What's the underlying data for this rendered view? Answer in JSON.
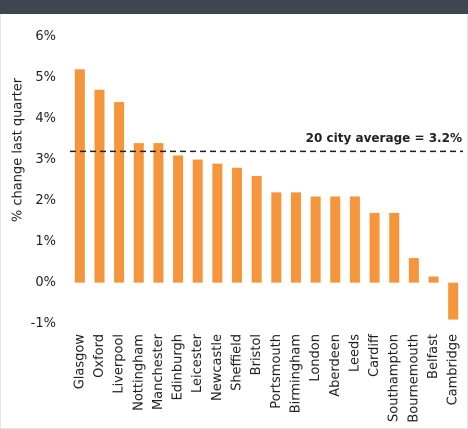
{
  "chart_data": {
    "type": "bar",
    "y_label": "% change last quarter",
    "categories": [
      "Glasgow",
      "Oxford",
      "Liverpool",
      "Nottingham",
      "Manchester",
      "Edinburgh",
      "Leicester",
      "Newcastle",
      "Sheffield",
      "Bristol",
      "Portsmouth",
      "Birmingham",
      "London",
      "Aberdeen",
      "Leeds",
      "Cardiff",
      "Southampton",
      "Bournemouth",
      "Belfast",
      "Cambridge"
    ],
    "values": [
      5.2,
      4.7,
      4.4,
      3.4,
      3.4,
      3.1,
      3.0,
      2.9,
      2.8,
      2.6,
      2.2,
      2.2,
      2.1,
      2.1,
      2.1,
      1.7,
      1.7,
      0.6,
      0.15,
      -0.9
    ],
    "color": "#f5963c",
    "ylim": [
      -1.3,
      6.4
    ],
    "yticks": [
      {
        "value": -1,
        "label": "-1%"
      },
      {
        "value": 0,
        "label": "0%"
      },
      {
        "value": 1,
        "label": "1%"
      },
      {
        "value": 2,
        "label": "2%"
      },
      {
        "value": 3,
        "label": "3%"
      },
      {
        "value": 4,
        "label": "4%"
      },
      {
        "value": 5,
        "label": "5%"
      },
      {
        "value": 6,
        "label": "6%"
      }
    ],
    "average": 3.2,
    "average_label": "20 city average = 3.2%"
  }
}
